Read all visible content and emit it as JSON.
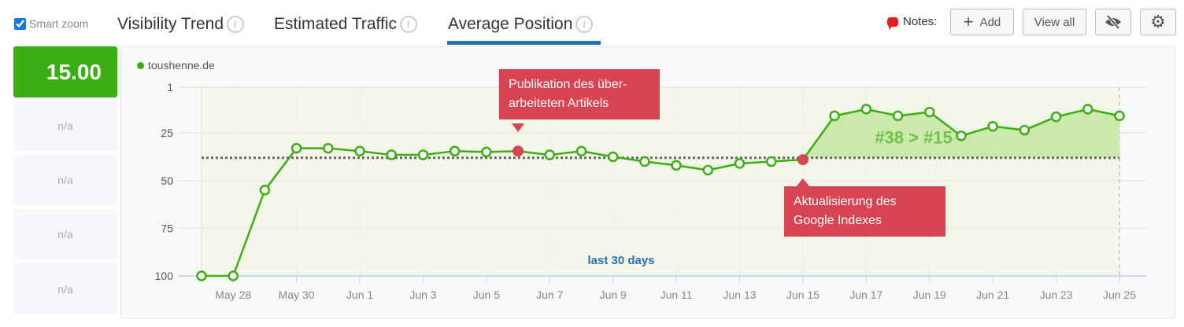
{
  "smart_zoom": {
    "label": "Smart zoom",
    "checked": true
  },
  "tabs": [
    {
      "label": "Visibility Trend"
    },
    {
      "label": "Estimated Traffic"
    },
    {
      "label": "Average Position",
      "active": true
    }
  ],
  "notes": {
    "label": "Notes:",
    "add": "Add",
    "view_all": "View all"
  },
  "score": "15.00",
  "side_values": [
    "n/a",
    "n/a",
    "n/a",
    "n/a"
  ],
  "colors": {
    "accent": "#3aaf12",
    "note": "#d94452",
    "tab_underline": "#2b6fb5"
  },
  "chart_data": {
    "type": "line",
    "legend": "toushenne.de",
    "y_ticks": [
      "1",
      "25",
      "50",
      "75",
      "100"
    ],
    "ylim": [
      1,
      100
    ],
    "y_inverted": true,
    "x_labels": [
      "May 28",
      "May 30",
      "Jun 1",
      "Jun 3",
      "Jun 5",
      "Jun 7",
      "Jun 9",
      "Jun 11",
      "Jun 13",
      "Jun 15",
      "Jun 17",
      "Jun 19",
      "Jun 21",
      "Jun 23",
      "Jun 25"
    ],
    "dates": [
      "May 27",
      "May 28",
      "May 29",
      "May 30",
      "May 31",
      "Jun 1",
      "Jun 2",
      "Jun 3",
      "Jun 4",
      "Jun 5",
      "Jun 6",
      "Jun 7",
      "Jun 8",
      "Jun 9",
      "Jun 10",
      "Jun 11",
      "Jun 12",
      "Jun 13",
      "Jun 14",
      "Jun 15",
      "Jun 16",
      "Jun 17",
      "Jun 18",
      "Jun 19",
      "Jun 20",
      "Jun 21",
      "Jun 22",
      "Jun 23",
      "Jun 24",
      "Jun 25"
    ],
    "values": [
      100,
      100,
      55,
      33,
      33,
      34.5,
      36.5,
      36.5,
      34.5,
      35,
      34.5,
      36.5,
      34.5,
      37.5,
      40,
      42,
      44.5,
      41,
      40,
      39,
      16,
      12.5,
      16,
      14,
      26.5,
      21.5,
      23.5,
      16.5,
      12.5,
      16
    ],
    "baseline": 38,
    "comparison_label": "#38 > #15",
    "range_label": "last 30 days",
    "annotations": [
      {
        "date_index": 10,
        "text_line1": "Publikation des über-",
        "text_line2": "arbeiteten Artikels"
      },
      {
        "date_index": 19,
        "text_line1": "Aktualisierung des",
        "text_line2": "Google Indexes"
      }
    ]
  }
}
